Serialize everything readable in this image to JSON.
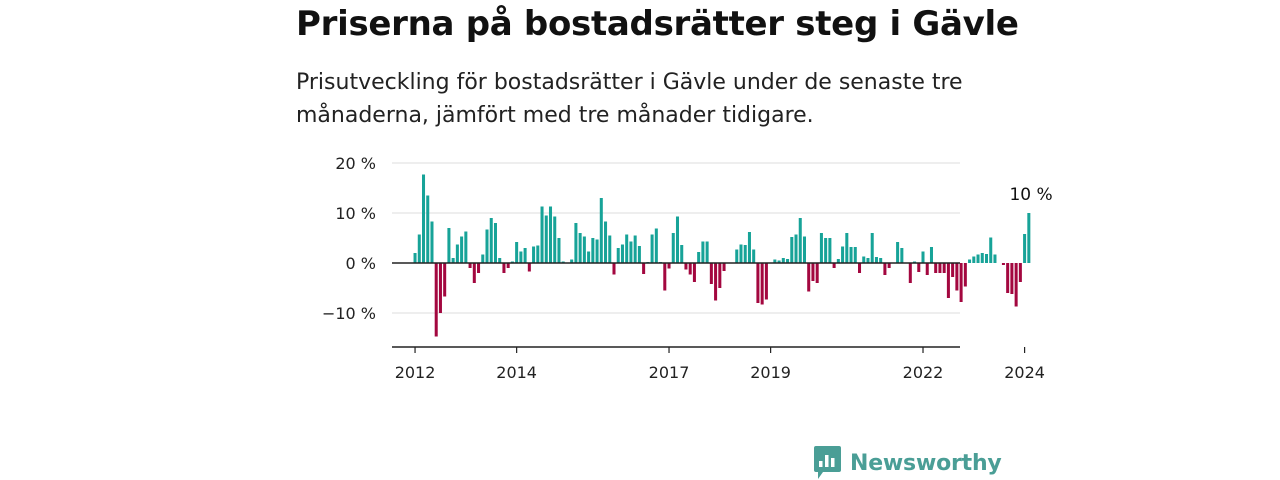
{
  "header": {
    "title": "Priserna på bostadsrätter steg i Gävle",
    "subtitle": "Prisutveckling för bostadsrätter i Gävle under de senaste tre månaderna, jämfört med tre månader tidigare."
  },
  "brand": {
    "name": "Newsworthy",
    "color": "#4a9e96"
  },
  "chart_data": {
    "type": "bar",
    "start": "2011-09",
    "x_tick_labels": [
      "2012",
      "2014",
      "2017",
      "2019",
      "2022",
      "2024"
    ],
    "y_ticks": [
      20,
      10,
      0,
      -10
    ],
    "y_tick_labels": [
      "20 %",
      "10 %",
      "0 %",
      "−10 %"
    ],
    "ylim": [
      -17,
      20
    ],
    "grid": true,
    "colors": {
      "positive": "#17a398",
      "negative": "#a3073f"
    },
    "annotation": {
      "text": "10 %",
      "value": 10,
      "date": "2024-03"
    },
    "values": [
      0,
      0,
      0,
      0,
      2,
      5.7,
      17.7,
      13.5,
      8.3,
      -14.7,
      -10,
      -6.7,
      7,
      1,
      3.7,
      5.3,
      6.3,
      -1,
      -4,
      -2,
      1.7,
      6.7,
      9,
      8,
      1,
      -2,
      -1,
      0.3,
      4.2,
      2.3,
      3,
      -1.7,
      3.3,
      3.5,
      11.3,
      9.5,
      11.3,
      9.3,
      5,
      0.3,
      0,
      0.7,
      8,
      6,
      5.3,
      2.3,
      5,
      4.7,
      13,
      8.3,
      5.5,
      -2.3,
      3,
      3.7,
      5.7,
      4.3,
      5.5,
      3.4,
      -2.2,
      0.2,
      5.7,
      6.9,
      0.2,
      -5.5,
      -1.1,
      6,
      9.3,
      3.6,
      -1.3,
      -2.3,
      -3.8,
      2.2,
      4.3,
      4.3,
      -4.2,
      -7.5,
      -5,
      -1.6,
      0,
      0,
      2.7,
      3.7,
      3.6,
      6.2,
      2.7,
      -8,
      -8.3,
      -7.3,
      0,
      0.7,
      0.5,
      1,
      0.8,
      5.2,
      5.7,
      9,
      5.3,
      -5.7,
      -3.6,
      -4,
      6,
      5,
      5,
      -1,
      0.8,
      3.3,
      6,
      3.2,
      3.2,
      -2,
      1.3,
      1,
      6,
      1.2,
      1,
      -2.4,
      -1,
      0,
      4.2,
      3,
      0,
      -4,
      0.3,
      -1.8,
      2.3,
      -2.4,
      3.2,
      -2,
      -2,
      -2,
      -7,
      -2.8,
      -5.5,
      -7.8,
      -4.7,
      0.7,
      1.3,
      1.7,
      2,
      1.8,
      5.1,
      1.7,
      0,
      -0.4,
      -6,
      -6.2,
      -8.7,
      -3.8,
      5.8,
      10
    ]
  }
}
